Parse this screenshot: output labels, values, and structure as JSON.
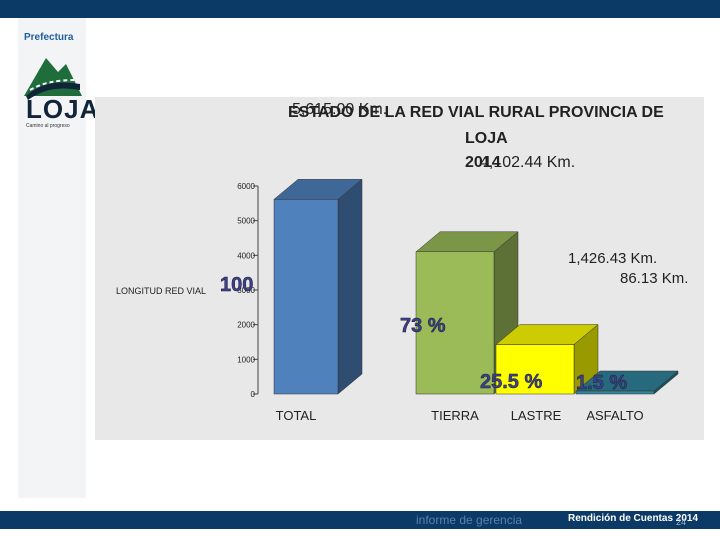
{
  "header": {
    "logo_title": "Prefectura",
    "logo_name": "LOJA",
    "logo_tagline": "Camino al progreso"
  },
  "colors": {
    "topbar": "#0b3a66",
    "total": "#4f81bd",
    "tierra": "#9bbb59",
    "lastre": "#ffff00",
    "asfalto": "#31859c",
    "chart_bg": "#e8e8e8"
  },
  "chart_data": {
    "type": "bar",
    "title_lines": [
      "ESTADO DE LA RED VIAL  RURAL PROVINCIA DE",
      "LOJA",
      "2014"
    ],
    "overlap_top": "5,615.00 Km.",
    "overlap_mid": "4,102.44 Km.",
    "ylabel": "LONGITUD RED VIAL",
    "ylim": [
      0,
      6000
    ],
    "yticks": [
      0,
      1000,
      2000,
      3000,
      4000,
      5000,
      6000
    ],
    "categories": [
      "TOTAL",
      "TIERRA",
      "LASTRE",
      "ASFALTO"
    ],
    "values": [
      5615.0,
      4102.44,
      1426.43,
      86.13
    ],
    "percent_labels": [
      "100",
      "73 %",
      "25.5 %",
      "1.5 %"
    ],
    "annotations": [
      "1,426.43 Km.",
      "86.13 Km."
    ]
  },
  "footer": {
    "left": "informe de gerencia",
    "right": "Rendición de Cuentas 2014",
    "page": "24"
  }
}
